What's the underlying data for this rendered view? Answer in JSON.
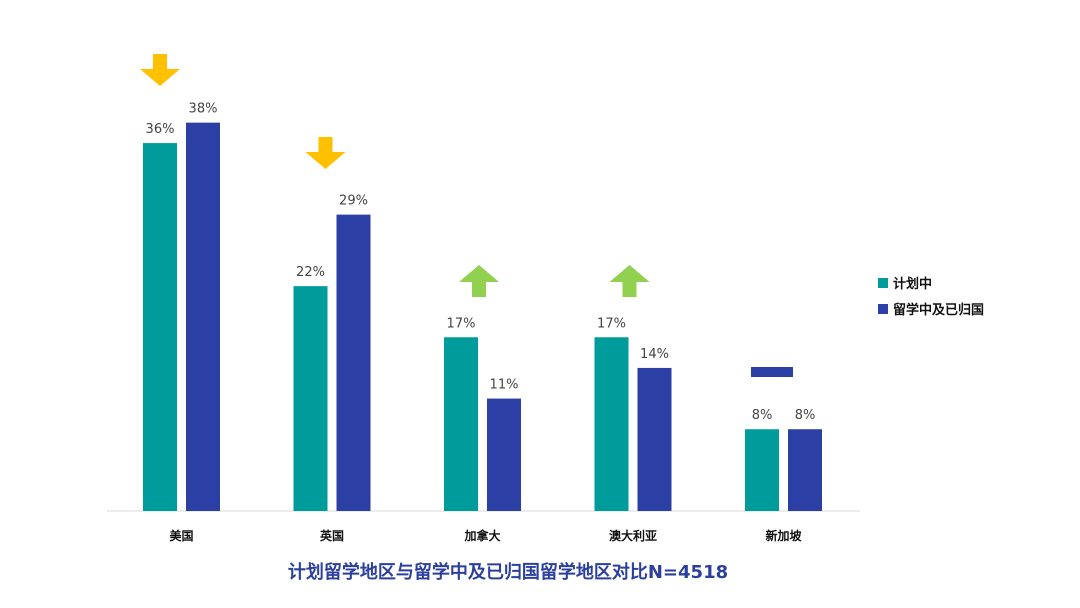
{
  "chart_data": {
    "type": "bar",
    "title": "计划留学地区与留学中及已归国留学地区对比N=4518",
    "categories": [
      "美国",
      "英国",
      "加拿大",
      "澳大利亚",
      "新加坡"
    ],
    "series": [
      {
        "name": "计划中",
        "color": "#009b9b",
        "values": [
          36,
          22,
          17,
          17,
          8
        ],
        "labels": [
          "36%",
          "22%",
          "17%",
          "17%",
          "8%"
        ]
      },
      {
        "name": "留学中及已归国",
        "color": "#2b3fa5",
        "values": [
          38,
          29,
          11,
          14,
          8
        ],
        "labels": [
          "38%",
          "29%",
          "11%",
          "14%",
          "8%"
        ]
      }
    ],
    "trend_markers": [
      {
        "category": "美国",
        "icon": "down-arrow-icon",
        "color": "#ffc000"
      },
      {
        "category": "英国",
        "icon": "down-arrow-icon",
        "color": "#ffc000"
      },
      {
        "category": "加拿大",
        "icon": "up-arrow-icon",
        "color": "#92d050"
      },
      {
        "category": "澳大利亚",
        "icon": "up-arrow-icon",
        "color": "#92d050"
      },
      {
        "category": "新加坡",
        "icon": "dash-icon",
        "color": "#2b3fa5"
      }
    ],
    "ylim": [
      0,
      40
    ],
    "grid": false,
    "legend": "right",
    "xlabel": "",
    "ylabel": ""
  }
}
